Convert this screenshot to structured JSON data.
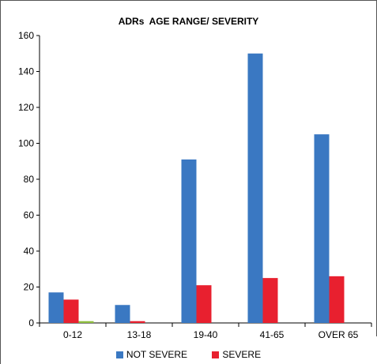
{
  "chart_data": {
    "type": "bar",
    "title": "ADRs  AGE RANGE/ SEVERITY",
    "xlabel": "",
    "ylabel": "",
    "categories": [
      "0-12",
      "13-18",
      "19-40",
      "41-65",
      "OVER 65"
    ],
    "ylim": [
      0,
      160
    ],
    "yticks": [
      "0",
      "20",
      "40",
      "60",
      "80",
      "100",
      "120",
      "140",
      "160"
    ],
    "series": [
      {
        "name": "NOT SEVERE",
        "color": "#3a78c2",
        "values": [
          17,
          10,
          91,
          150,
          105
        ]
      },
      {
        "name": "SEVERE",
        "color": "#e8202f",
        "values": [
          13,
          1,
          21,
          25,
          26
        ]
      },
      {
        "name": "",
        "color": "#8fbf3f",
        "values": [
          1,
          0,
          0,
          0,
          0
        ]
      }
    ],
    "legend": [
      "NOT SEVERE",
      "SEVERE"
    ],
    "legend_position": "bottom",
    "grid": false
  }
}
